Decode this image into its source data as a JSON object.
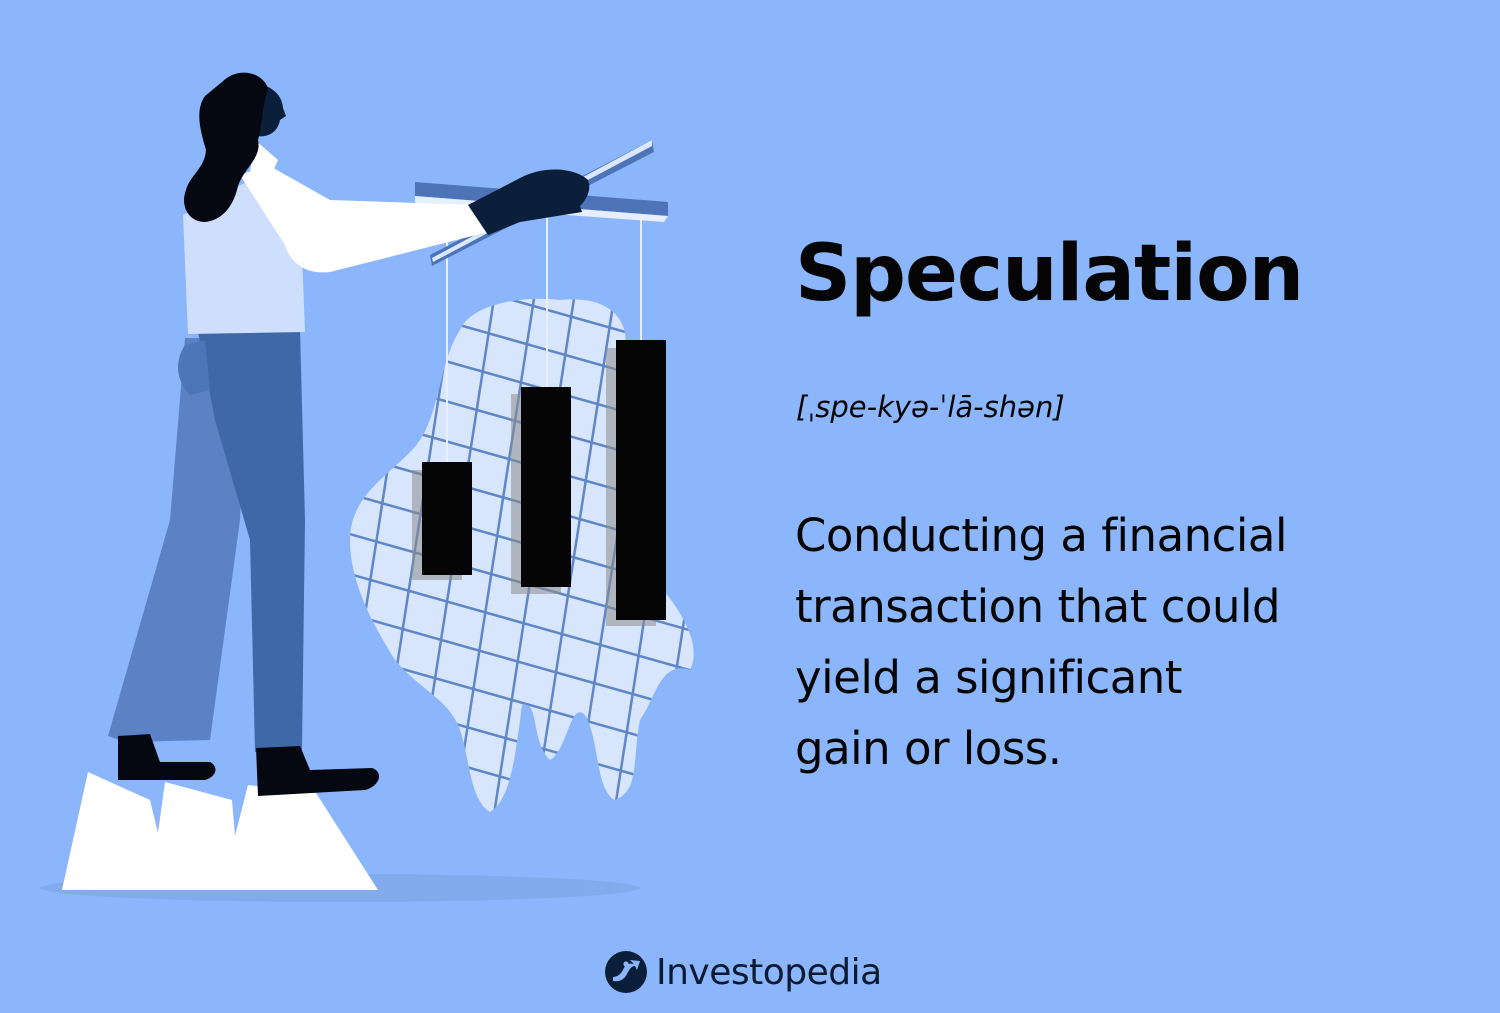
{
  "term": "Speculation",
  "pronunciation": "[ˌspe-kyə-ˈlā-shən]",
  "definition_lines": [
    "Conducting a financial",
    "transaction that could",
    "yield a significant",
    "gain or loss."
  ],
  "brand": {
    "name": "Investopedia",
    "icon": "investopedia-logo-icon"
  },
  "colors": {
    "background": "#8bb6fb",
    "text": "#050505",
    "pants": "#3f68a9",
    "shirt": "#cddffc",
    "dark_navy": "#0b1f3a",
    "bars": "#050505",
    "grid_blob": "#d7e6fd",
    "grid_lines": "#5f86c6"
  },
  "icons": [
    "woman-figure",
    "marionette-control-bar",
    "candlestick-bar",
    "grid-blob",
    "jagged-peak-pedestal"
  ]
}
